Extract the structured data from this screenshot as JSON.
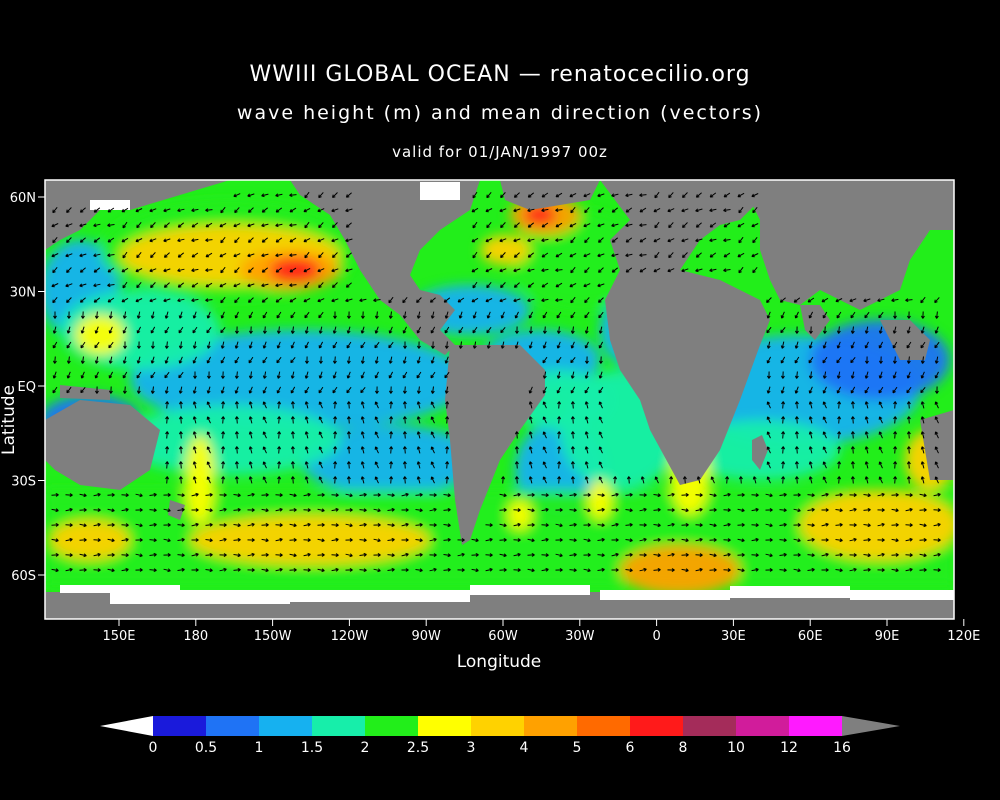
{
  "title": "WWIII GLOBAL OCEAN — renatocecilio.org",
  "subtitle": "wave height (m) and mean direction (vectors)",
  "valid": "valid for 01/JAN/1997 00z",
  "axes": {
    "xlabel": "Longitude",
    "ylabel": "Latitude",
    "x_ticks": [
      "150E",
      "180",
      "150W",
      "120W",
      "90W",
      "60W",
      "30W",
      "0",
      "30E",
      "60E",
      "90E",
      "120E"
    ],
    "y_ticks": [
      "60N",
      "30N",
      "EQ",
      "30S",
      "60S"
    ]
  },
  "colorbar": {
    "labels": [
      "0",
      "0.5",
      "1",
      "1.5",
      "2",
      "2.5",
      "3",
      "4",
      "5",
      "6",
      "8",
      "10",
      "12",
      "16"
    ],
    "colors": [
      "#1a1adb",
      "#1f73f5",
      "#16b1f0",
      "#17eeaa",
      "#22ee1a",
      "#ffff00",
      "#ffd200",
      "#ffa100",
      "#ff6a00",
      "#ff1a1a",
      "#a42c5a",
      "#d11c9b",
      "#ff1aff"
    ]
  },
  "colors": {
    "land": "#7f7f7f",
    "ice": "#ffffff",
    "background": "#000000"
  }
}
